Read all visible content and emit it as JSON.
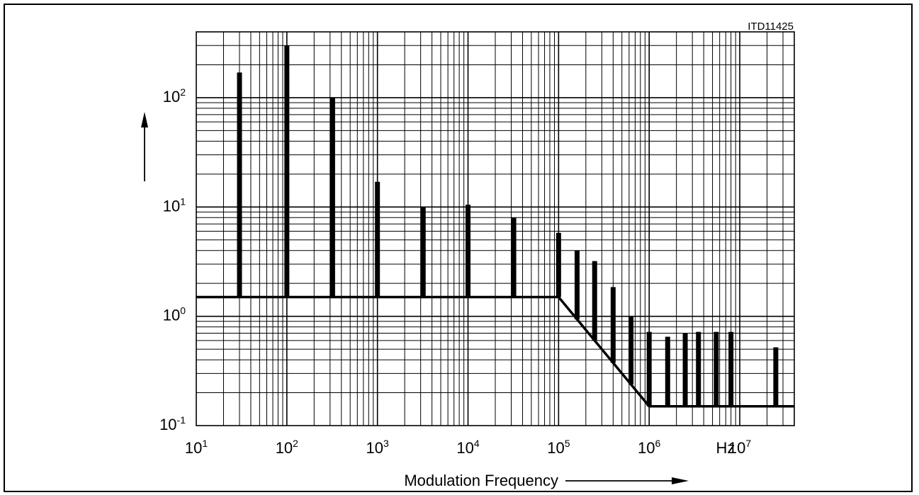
{
  "figure_id": "ITD11425",
  "chart_data": {
    "type": "bar",
    "x_scale": "log",
    "y_scale": "log",
    "xlim": [
      10,
      40000000
    ],
    "ylim": [
      0.1,
      400
    ],
    "xlabel": "Modulation Frequency",
    "ylabel": "",
    "x_unit": "Hz",
    "grid": true,
    "x_ticks": [
      {
        "value": 10,
        "base": "10",
        "exp": "1"
      },
      {
        "value": 100,
        "base": "10",
        "exp": "2"
      },
      {
        "value": 1000,
        "base": "10",
        "exp": "3"
      },
      {
        "value": 10000,
        "base": "10",
        "exp": "4"
      },
      {
        "value": 100000,
        "base": "10",
        "exp": "5"
      },
      {
        "value": 1000000,
        "base": "10",
        "exp": "6"
      },
      {
        "value": 10000000,
        "base": "10",
        "exp": "7"
      }
    ],
    "y_ticks": [
      {
        "value": 0.1,
        "base": "10",
        "exp": "-1"
      },
      {
        "value": 1,
        "base": "10",
        "exp": "0"
      },
      {
        "value": 10,
        "base": "10",
        "exp": "1"
      },
      {
        "value": 100,
        "base": "10",
        "exp": "2"
      }
    ],
    "bars": [
      {
        "x": 30,
        "y": 170
      },
      {
        "x": 100,
        "y": 300
      },
      {
        "x": 320,
        "y": 100
      },
      {
        "x": 1000,
        "y": 17
      },
      {
        "x": 3200,
        "y": 10
      },
      {
        "x": 10000,
        "y": 10.5
      },
      {
        "x": 32000,
        "y": 8
      },
      {
        "x": 100000,
        "y": 5.8
      },
      {
        "x": 160000,
        "y": 4
      },
      {
        "x": 250000,
        "y": 3.2
      },
      {
        "x": 400000,
        "y": 1.85
      },
      {
        "x": 630000,
        "y": 1.0
      },
      {
        "x": 1000000,
        "y": 0.72
      },
      {
        "x": 1600000,
        "y": 0.65
      },
      {
        "x": 2500000,
        "y": 0.7
      },
      {
        "x": 3500000,
        "y": 0.72
      },
      {
        "x": 5500000,
        "y": 0.72
      },
      {
        "x": 8000000,
        "y": 0.72
      },
      {
        "x": 25000000,
        "y": 0.52
      }
    ],
    "limit_line": [
      {
        "x": 10,
        "y": 1.5
      },
      {
        "x": 100000,
        "y": 1.5
      },
      {
        "x": 1000000,
        "y": 0.15
      },
      {
        "x": 40000000,
        "y": 0.15
      }
    ]
  }
}
